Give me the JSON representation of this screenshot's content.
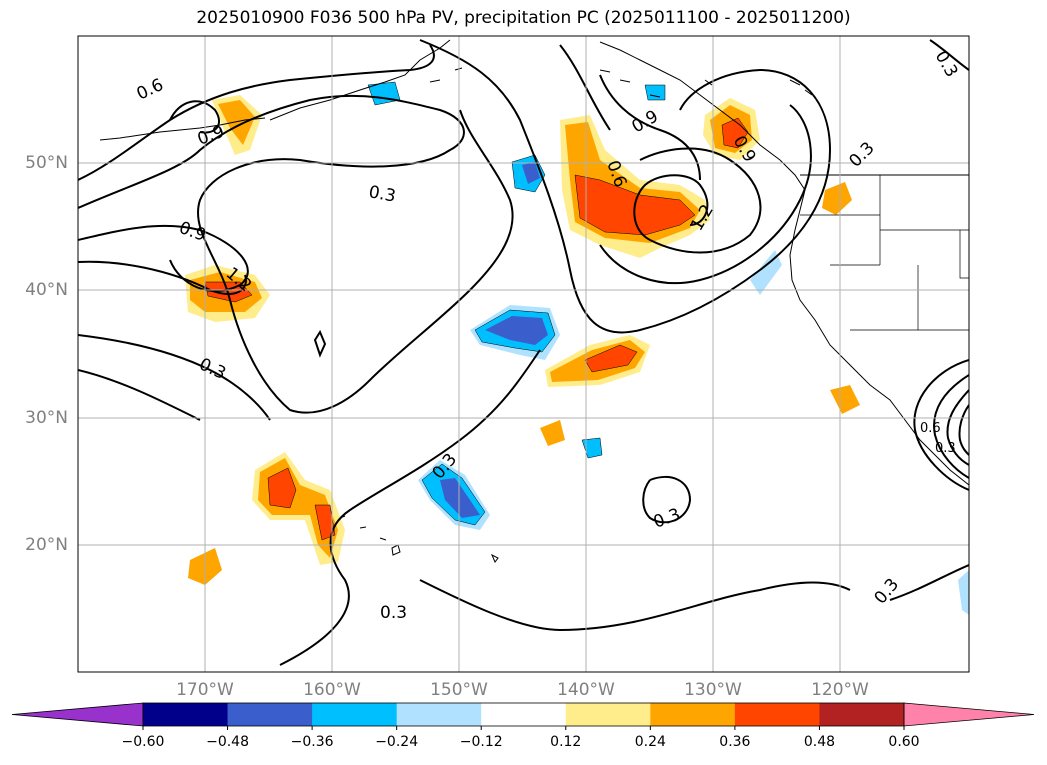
{
  "title": "2025010900 F036 500 hPa PV, precipitation PC (2025011100 - 2025011200)",
  "map": {
    "lat_labels": [
      "50°N",
      "40°N",
      "30°N",
      "20°N"
    ],
    "lon_labels": [
      "170°W",
      "160°W",
      "150°W",
      "140°W",
      "130°W",
      "120°W"
    ],
    "contour_labels": [
      "0.6",
      "0.9",
      "0.3",
      "0.9",
      "1.2",
      "0.3",
      "0.9",
      "0.6",
      "0.9",
      "1.2",
      "0.3",
      "0.3",
      "0.3",
      "0.3",
      "0.3",
      "0.3",
      "0.6",
      "0.3"
    ],
    "colors": {
      "pos_1": "#ffec8b",
      "pos_2": "#ffa500",
      "pos_3": "#ff4500",
      "neg_1": "#b0e2ff",
      "neg_2": "#00bfff",
      "neg_3": "#3a5fcd",
      "contour": "#000000",
      "grid": "#b0b0b0",
      "coast": "#000000"
    }
  },
  "colorbar": {
    "ticks": [
      "−0.60",
      "−0.48",
      "−0.36",
      "−0.24",
      "−0.12",
      "0.12",
      "0.24",
      "0.36",
      "0.48",
      "0.60"
    ],
    "colors": [
      "#9932cc",
      "#00008b",
      "#3a5fcd",
      "#00bfff",
      "#b0e2ff",
      "#ffffff",
      "#ffec8b",
      "#ffa500",
      "#ff4500",
      "#b22222",
      "#ff82ab"
    ]
  }
}
